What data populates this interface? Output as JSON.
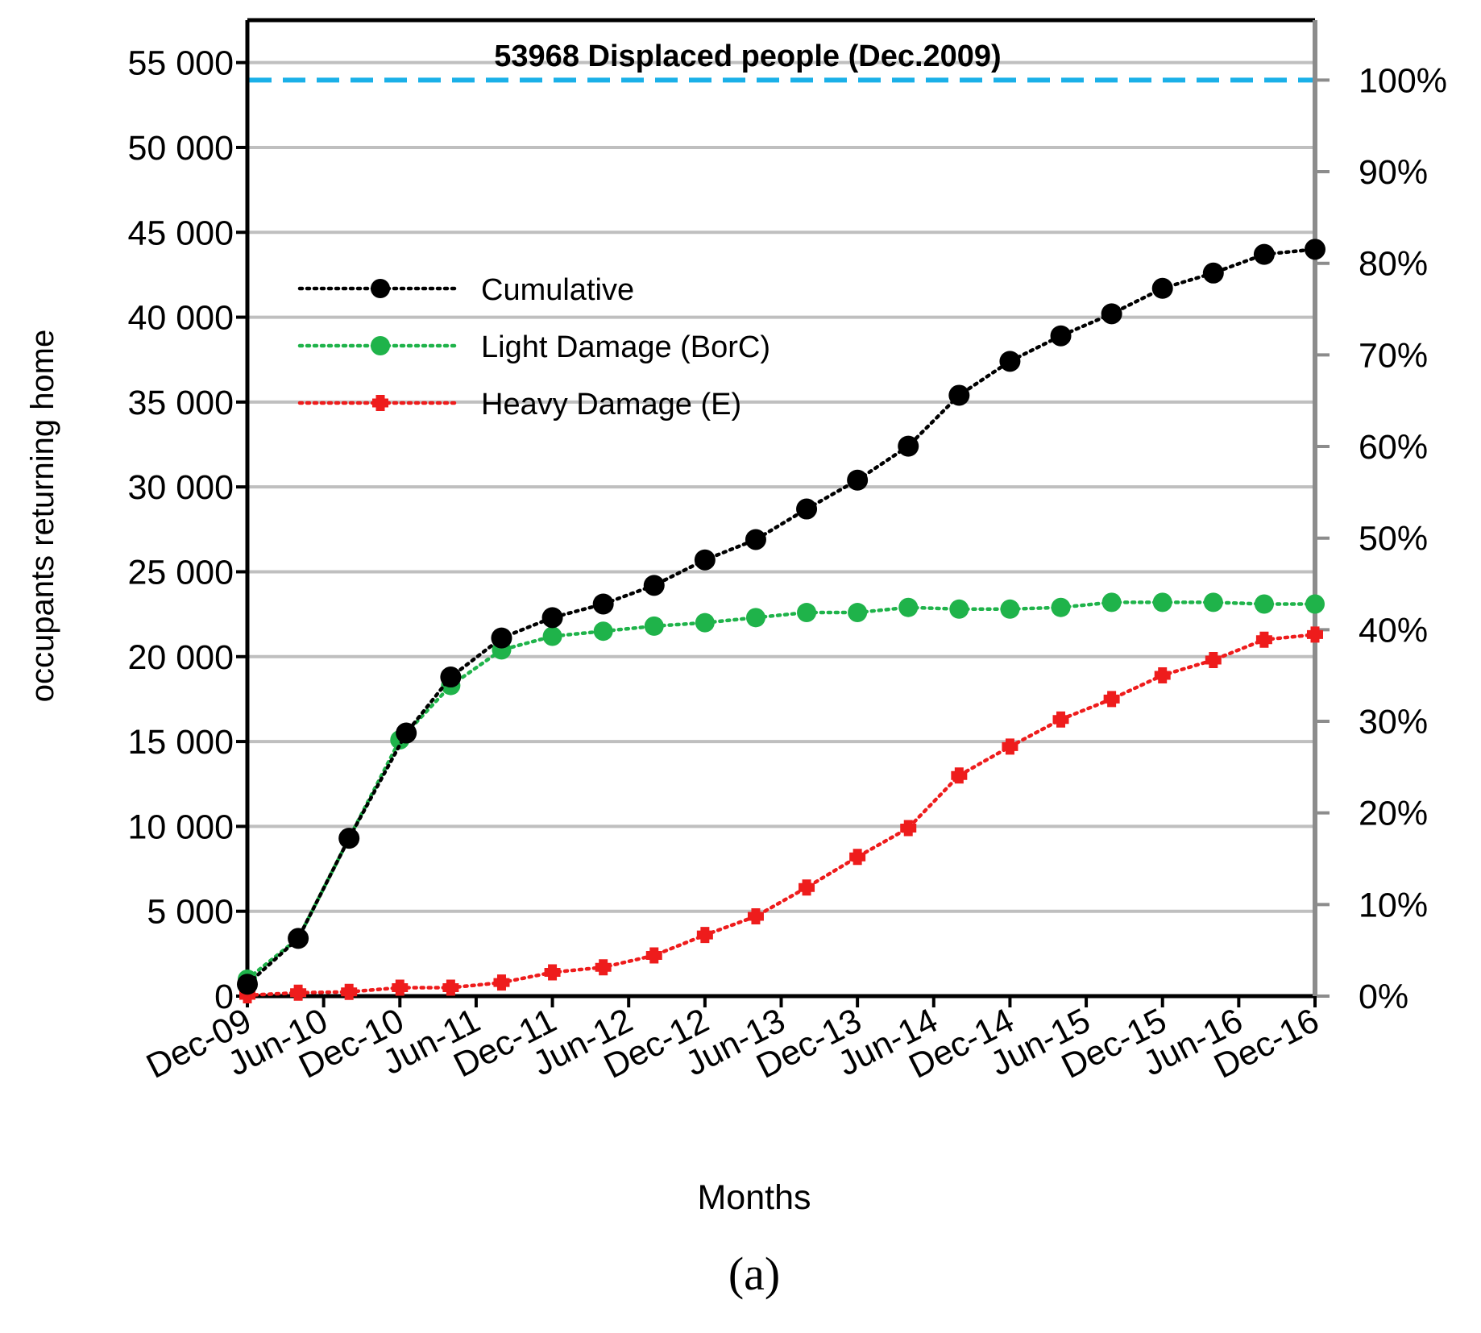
{
  "chart_data": {
    "type": "line",
    "title": "53968 Displaced people (Dec.2009)",
    "xlabel": "Months",
    "ylabel": "occupants returning home",
    "panel_label": "(a)",
    "ylim": [
      0,
      57500
    ],
    "y_ticks": [
      0,
      5000,
      10000,
      15000,
      20000,
      25000,
      30000,
      35000,
      40000,
      45000,
      50000,
      55000
    ],
    "y_tick_labels": [
      "0",
      "5 000",
      "10 000",
      "15 000",
      "20 000",
      "25 000",
      "30 000",
      "35 000",
      "40 000",
      "45 000",
      "50 000",
      "55 000"
    ],
    "y2_ticks": [
      "0%",
      "10%",
      "20%",
      "30%",
      "40%",
      "50%",
      "60%",
      "70%",
      "80%",
      "90%",
      "100%"
    ],
    "y2_range": [
      0,
      53968
    ],
    "x_range": [
      0,
      84
    ],
    "x_ticks": [
      0,
      6,
      12,
      18,
      24,
      30,
      36,
      42,
      48,
      54,
      60,
      66,
      72,
      78,
      84
    ],
    "x_tick_labels": [
      "Dec-09",
      "Jun-10",
      "Dec-10",
      "Jun-11",
      "Dec-11",
      "Jun-12",
      "Dec-12",
      "Jun-13",
      "Dec-13",
      "Jun-14",
      "Dec-14",
      "Jun-15",
      "Dec-15",
      "Jun-16",
      "Dec-16"
    ],
    "reference_line": {
      "name": "53968 Displaced people (Dec.2009)",
      "value": 53968,
      "color": "#1ab0e8"
    },
    "grid": "horizontal",
    "legend_position": "upper-left",
    "series": [
      {
        "name": "Cumulative",
        "color": "#000000",
        "marker": "circle",
        "points": [
          [
            0,
            700
          ],
          [
            4,
            3400
          ],
          [
            8,
            9300
          ],
          [
            12.5,
            15500
          ],
          [
            16,
            18800
          ],
          [
            20,
            21100
          ],
          [
            24,
            22300
          ],
          [
            28,
            23100
          ],
          [
            32,
            24200
          ],
          [
            36,
            25700
          ],
          [
            40,
            26900
          ],
          [
            44,
            28700
          ],
          [
            48,
            30400
          ],
          [
            52,
            32400
          ],
          [
            56,
            35400
          ],
          [
            60,
            37400
          ],
          [
            64,
            38900
          ],
          [
            68,
            40200
          ],
          [
            72,
            41700
          ],
          [
            76,
            42600
          ],
          [
            80,
            43700
          ],
          [
            84,
            44000
          ]
        ]
      },
      {
        "name": "Light Damage (BorC)",
        "color": "#1fb34a",
        "marker": "circle",
        "points": [
          [
            0,
            1000
          ],
          [
            4,
            3400
          ],
          [
            8,
            9300
          ],
          [
            12,
            15100
          ],
          [
            16,
            18300
          ],
          [
            20,
            20400
          ],
          [
            24,
            21200
          ],
          [
            28,
            21500
          ],
          [
            32,
            21800
          ],
          [
            36,
            22000
          ],
          [
            40,
            22300
          ],
          [
            44,
            22600
          ],
          [
            48,
            22600
          ],
          [
            52,
            22900
          ],
          [
            56,
            22800
          ],
          [
            60,
            22800
          ],
          [
            64,
            22900
          ],
          [
            68,
            23200
          ],
          [
            72,
            23200
          ],
          [
            76,
            23200
          ],
          [
            80,
            23100
          ],
          [
            84,
            23100
          ]
        ]
      },
      {
        "name": "Heavy Damage (E)",
        "color": "#ee1c1c",
        "marker": "cross",
        "points": [
          [
            0,
            50
          ],
          [
            4,
            200
          ],
          [
            8,
            250
          ],
          [
            12,
            500
          ],
          [
            16,
            500
          ],
          [
            20,
            800
          ],
          [
            24,
            1400
          ],
          [
            28,
            1700
          ],
          [
            32,
            2400
          ],
          [
            36,
            3600
          ],
          [
            40,
            4700
          ],
          [
            44,
            6400
          ],
          [
            48,
            8200
          ],
          [
            52,
            9900
          ],
          [
            56,
            13000
          ],
          [
            60,
            14700
          ],
          [
            64,
            16300
          ],
          [
            68,
            17500
          ],
          [
            72,
            18900
          ],
          [
            76,
            19800
          ],
          [
            80,
            21000
          ],
          [
            84,
            21300
          ]
        ]
      }
    ]
  }
}
